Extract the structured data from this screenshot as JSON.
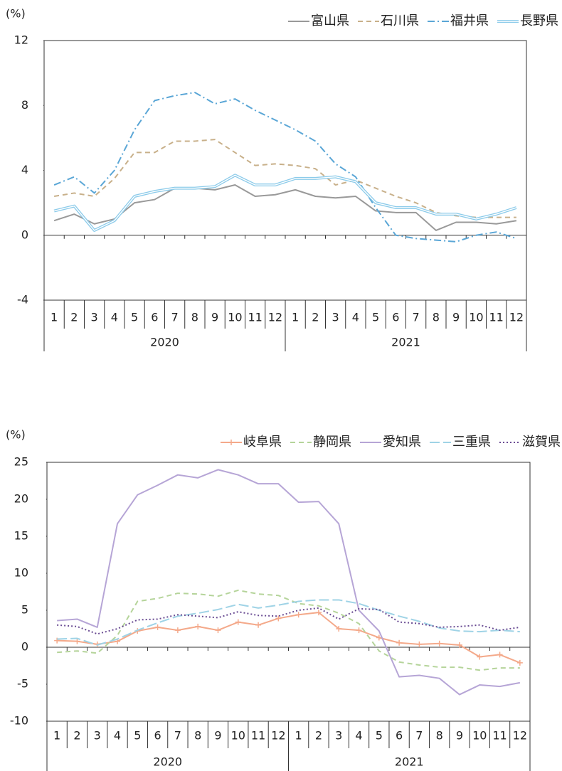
{
  "chart_data": [
    {
      "type": "line",
      "ylabel": "(%)",
      "ylim": [
        -4,
        12
      ],
      "yticks": [
        -4,
        0,
        4,
        8,
        12
      ],
      "categories": [
        "1",
        "2",
        "3",
        "4",
        "5",
        "6",
        "7",
        "8",
        "9",
        "10",
        "11",
        "12",
        "1",
        "2",
        "3",
        "4",
        "5",
        "6",
        "7",
        "8",
        "9",
        "10",
        "11",
        "12"
      ],
      "years": [
        "2020",
        "2021"
      ],
      "series": [
        {
          "name": "富山県",
          "color": "#999999",
          "style": "solid",
          "values": [
            0.9,
            1.3,
            0.7,
            1.0,
            2.0,
            2.2,
            2.9,
            2.9,
            2.8,
            3.1,
            2.4,
            2.5,
            2.8,
            2.4,
            2.3,
            2.4,
            1.5,
            1.4,
            1.4,
            0.3,
            0.8,
            0.8,
            0.7,
            0.9
          ]
        },
        {
          "name": "石川県",
          "color": "#c8b08a",
          "style": "dashed",
          "values": [
            2.4,
            2.6,
            2.4,
            3.5,
            5.1,
            5.1,
            5.8,
            5.8,
            5.9,
            5.1,
            4.3,
            4.4,
            4.3,
            4.1,
            3.1,
            3.4,
            2.9,
            2.4,
            2.0,
            1.4,
            1.2,
            1.1,
            1.1,
            1.1
          ]
        },
        {
          "name": "福井県",
          "color": "#5aa6d6",
          "style": "dashdot",
          "values": [
            3.1,
            3.6,
            2.6,
            4.0,
            6.5,
            8.3,
            8.6,
            8.8,
            8.1,
            8.4,
            7.7,
            7.1,
            6.5,
            5.8,
            4.4,
            3.6,
            1.7,
            0.0,
            -0.2,
            -0.3,
            -0.4,
            0.0,
            0.2,
            -0.2
          ]
        },
        {
          "name": "長野県",
          "color": "#8ccbea",
          "style": "double",
          "values": [
            1.5,
            1.8,
            0.3,
            0.9,
            2.4,
            2.7,
            2.9,
            2.9,
            3.0,
            3.7,
            3.1,
            3.1,
            3.5,
            3.5,
            3.6,
            3.3,
            2.0,
            1.7,
            1.7,
            1.3,
            1.3,
            1.0,
            1.3,
            1.7
          ]
        }
      ]
    },
    {
      "type": "line",
      "ylabel": "(%)",
      "ylim": [
        -10,
        25
      ],
      "yticks": [
        -10,
        -5,
        0,
        5,
        10,
        15,
        20,
        25
      ],
      "categories": [
        "1",
        "2",
        "3",
        "4",
        "5",
        "6",
        "7",
        "8",
        "9",
        "10",
        "11",
        "12",
        "1",
        "2",
        "3",
        "4",
        "5",
        "6",
        "7",
        "8",
        "9",
        "10",
        "11",
        "12"
      ],
      "years": [
        "2020",
        "2021"
      ],
      "series": [
        {
          "name": "岐阜県",
          "color": "#f4a98a",
          "style": "solid",
          "marker": "+",
          "values": [
            0.9,
            0.8,
            0.4,
            0.8,
            2.2,
            2.7,
            2.3,
            2.8,
            2.3,
            3.4,
            3.0,
            3.9,
            4.4,
            4.7,
            2.5,
            2.3,
            1.3,
            0.6,
            0.4,
            0.5,
            0.3,
            -1.3,
            -1.0,
            -2.1
          ]
        },
        {
          "name": "静岡県",
          "color": "#b5d49a",
          "style": "dashed",
          "values": [
            -0.7,
            -0.5,
            -0.8,
            1.6,
            6.2,
            6.6,
            7.3,
            7.2,
            6.9,
            7.7,
            7.2,
            7.0,
            5.9,
            5.6,
            4.6,
            3.2,
            -0.5,
            -2.0,
            -2.4,
            -2.7,
            -2.7,
            -3.1,
            -2.8,
            -2.8
          ]
        },
        {
          "name": "愛知県",
          "color": "#b6a5d6",
          "style": "solid",
          "values": [
            3.6,
            3.8,
            2.7,
            16.7,
            20.6,
            21.9,
            23.3,
            22.9,
            24.0,
            23.3,
            22.1,
            22.1,
            19.6,
            19.7,
            16.7,
            5.0,
            2.2,
            -4.0,
            -3.8,
            -4.2,
            -6.4,
            -5.1,
            -5.3,
            -4.8
          ]
        },
        {
          "name": "三重県",
          "color": "#9fd3e6",
          "style": "longdash",
          "values": [
            1.1,
            1.2,
            0.3,
            1.1,
            2.3,
            3.3,
            4.2,
            4.6,
            5.1,
            5.8,
            5.3,
            5.7,
            6.2,
            6.4,
            6.4,
            5.9,
            5.0,
            4.2,
            3.5,
            2.6,
            2.2,
            2.1,
            2.3,
            2.1
          ]
        },
        {
          "name": "滋賀県",
          "color": "#6a4c93",
          "style": "dotted",
          "values": [
            3.0,
            2.8,
            1.8,
            2.5,
            3.7,
            3.8,
            4.4,
            4.2,
            4.0,
            4.8,
            4.3,
            4.2,
            5.0,
            5.3,
            3.8,
            5.2,
            5.1,
            3.4,
            3.2,
            2.7,
            2.8,
            3.0,
            2.3,
            2.7
          ]
        }
      ]
    }
  ]
}
